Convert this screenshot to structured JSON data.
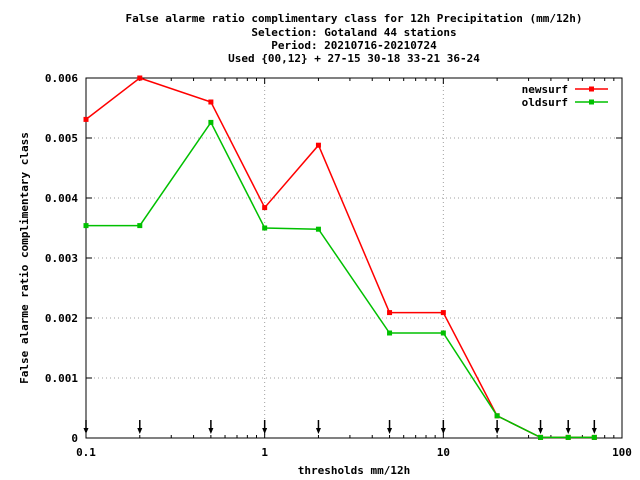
{
  "chart_data": {
    "type": "line",
    "title": [
      "False alarme ratio complimentary class  for 12h Precipitation (mm/12h)",
      "Selection: Gotaland     44 stations",
      "Period: 20210716-20210724",
      "Used {00,12} + 27-15 30-18 33-21 36-24"
    ],
    "xlabel": "thresholds mm/12h",
    "ylabel": "False alarme ratio complimentary class",
    "xscale": "log",
    "xlim": [
      0.1,
      100
    ],
    "ylim": [
      0,
      0.006
    ],
    "x_ticks": [
      0.1,
      1,
      10,
      100
    ],
    "x_tick_labels": [
      "0.1",
      "1",
      "10",
      "100"
    ],
    "y_ticks": [
      0,
      0.001,
      0.002,
      0.003,
      0.004,
      0.005,
      0.006
    ],
    "y_tick_labels": [
      "0",
      "0.001",
      "0.002",
      "0.003",
      "0.004",
      "0.005",
      "0.006"
    ],
    "grid": true,
    "legend_position": "top-right",
    "x": [
      0.1,
      0.2,
      0.5,
      1,
      2,
      5,
      10,
      20,
      35,
      50,
      70
    ],
    "series": [
      {
        "name": "newsurf",
        "color": "#ff0000",
        "values": [
          0.00531,
          0.006,
          0.0056,
          0.00384,
          0.00488,
          0.00209,
          0.00209,
          0.00037,
          1e-05,
          1e-05,
          1e-05
        ]
      },
      {
        "name": "oldsurf",
        "color": "#00c000",
        "values": [
          0.00354,
          0.00354,
          0.00526,
          0.0035,
          0.00348,
          0.00175,
          0.00175,
          0.00037,
          1e-05,
          1e-05,
          1e-05
        ]
      }
    ],
    "threshold_markers": [
      0.1,
      0.2,
      0.5,
      1,
      2,
      5,
      10,
      20,
      35,
      50,
      70
    ]
  }
}
